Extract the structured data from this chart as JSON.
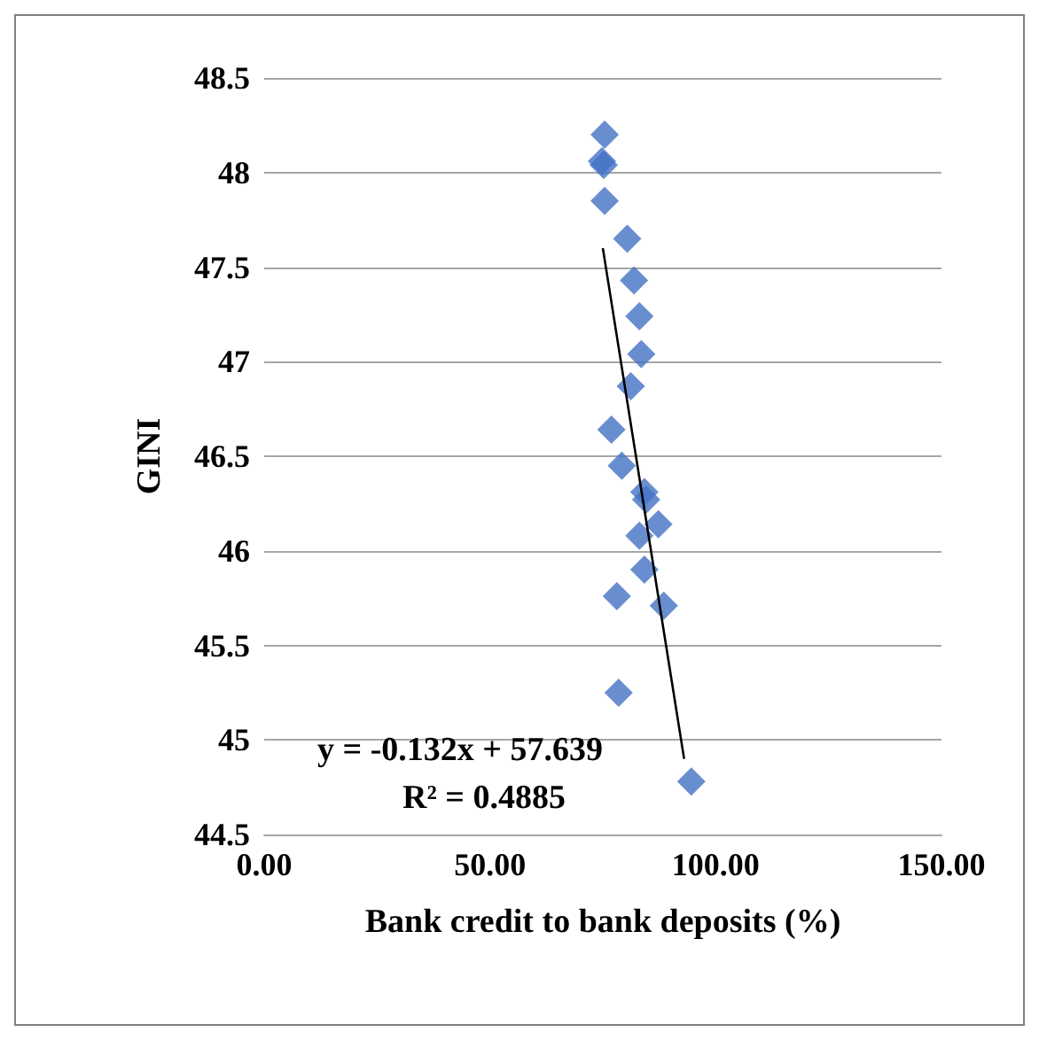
{
  "chart_data": {
    "type": "scatter",
    "xlabel": "Bank credit to bank deposits (%)",
    "ylabel": "GINI",
    "xlim": [
      0,
      150
    ],
    "ylim": [
      44.5,
      48.5
    ],
    "xticks": [
      {
        "value": 0,
        "label": "0.00"
      },
      {
        "value": 50,
        "label": "50.00"
      },
      {
        "value": 100,
        "label": "100.00"
      },
      {
        "value": 150,
        "label": "150.00"
      }
    ],
    "yticks": [
      44.5,
      45,
      45.5,
      46,
      46.5,
      47,
      47.5,
      48,
      48.5
    ],
    "grid": "y",
    "marker": "diamond",
    "series": [
      {
        "color": "#4472c4",
        "x": [
          75.4,
          74.8,
          75.2,
          75.4,
          80.4,
          81.9,
          83.1,
          83.5,
          81.2,
          76.9,
          79.2,
          84.2,
          84.6,
          87.3,
          83.1,
          84.2,
          78.1,
          88.5,
          78.5,
          94.6
        ],
        "values": [
          48.2,
          48.06,
          48.04,
          47.85,
          47.65,
          47.43,
          47.24,
          47.04,
          46.87,
          46.64,
          46.45,
          46.31,
          46.27,
          46.14,
          46.08,
          45.9,
          45.76,
          45.71,
          45.25,
          44.78
        ]
      },
      {
        "type": "line",
        "color": "#000000",
        "marker": "none",
        "x": [
          75,
          93
        ],
        "values": [
          47.6,
          44.9
        ]
      }
    ],
    "annotations": [
      "y = -0.132x + 57.639",
      "R² = 0.4885"
    ]
  }
}
